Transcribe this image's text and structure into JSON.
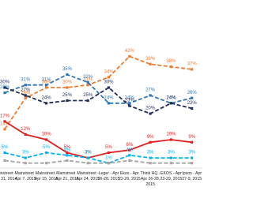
{
  "chart_data": {
    "type": "line",
    "categories": [
      "Mainstreet - Mar 31, 2014",
      "Mainstreet - Apr 7, 2015",
      "Mainstreet - Apr 15, 2015",
      "Mainstreet - Apr 21, 2015",
      "Mainstreet - Apr 24, 2015",
      "Leger - Apr 26-28, 2015",
      "Ekos - Apr 22-26, 2015",
      "Think HQ - Apr 26-28, 2015",
      "EKOS - Apr 23-29, 2015",
      "Ipsos - Apr 27-9, 2015"
    ],
    "ylim": [
      0,
      60
    ],
    "series": [
      {
        "color": "#ed7d31",
        "dash": true,
        "values": [
          14,
          26,
          30,
          30,
          31,
          34,
          42,
          39,
          38,
          37
        ],
        "value_labels": [
          "14%",
          "26%",
          "30%",
          "30%",
          "31%",
          "34%",
          "42%",
          "39%",
          "38%",
          "37%"
        ]
      },
      {
        "color": "#2e75b6",
        "dash": true,
        "values": [
          28,
          31,
          31,
          35,
          32,
          24,
          24,
          27,
          24,
          26
        ],
        "value_labels": [
          "28%",
          "31%",
          "31%",
          "35%",
          "32%",
          "24%",
          "24%",
          "27%",
          "24%",
          "26%"
        ]
      },
      {
        "color": "#1f2d5a",
        "dash": true,
        "values": [
          30,
          27,
          24,
          25,
          25,
          30,
          23,
          20,
          24,
          22
        ],
        "value_labels": [
          "30%",
          "27%",
          "24%",
          "25%",
          "25%",
          "30%",
          "23%",
          "20%",
          "24%",
          "22%"
        ]
      },
      {
        "color": "#e02020",
        "dash": false,
        "values": [
          17,
          12,
          10,
          5,
          3,
          5,
          6,
          9,
          10,
          9
        ],
        "value_labels": [
          "17%",
          "12%",
          "10%",
          "5%",
          "3%",
          "5%",
          "6%",
          "9%",
          "10%",
          "9%"
        ]
      },
      {
        "color": "#00b0f0",
        "dash": true,
        "values": [
          5,
          3,
          5,
          4,
          3,
          1,
          4,
          3,
          3,
          3
        ],
        "value_labels": [
          "5%",
          "3%",
          "5%",
          "4%",
          "3%",
          "1%",
          "4%",
          "3%",
          "3%",
          "3%"
        ]
      },
      {
        "color": "#a5a5a5",
        "dash": true,
        "values": [
          2,
          1,
          1,
          2,
          1,
          1,
          2,
          1,
          1,
          1
        ]
      }
    ]
  }
}
